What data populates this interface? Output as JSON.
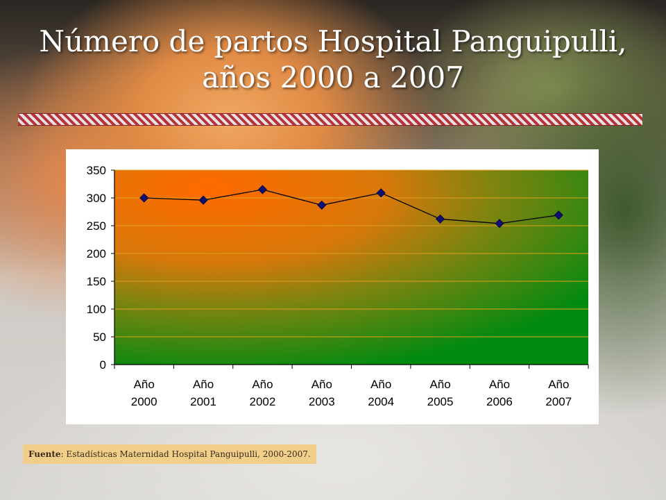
{
  "title_line1": "Número de partos Hospital Panguipulli,",
  "title_line2": "años 2000 a 2007",
  "source_label": "Fuente",
  "source_text": ": Estadísticas Maternidad Hospital Panguipulli, 2000-2007.",
  "chart_data": {
    "type": "line",
    "title": "",
    "xlabel": "",
    "ylabel": "",
    "categories": [
      "Año 2000",
      "Año 2001",
      "Año 2002",
      "Año 2003",
      "Año 2004",
      "Año 2005",
      "Año 2006",
      "Año 2007"
    ],
    "values": [
      300,
      296,
      315,
      287,
      309,
      262,
      254,
      269
    ],
    "ylim": [
      0,
      350
    ],
    "yticks": [
      "0",
      "50",
      "100",
      "150",
      "200",
      "250",
      "300",
      "350"
    ],
    "grid": true,
    "line_color": "#000000",
    "marker_color": "#10106e",
    "plot_gradient": [
      "#ff6a00",
      "#008a10"
    ]
  }
}
